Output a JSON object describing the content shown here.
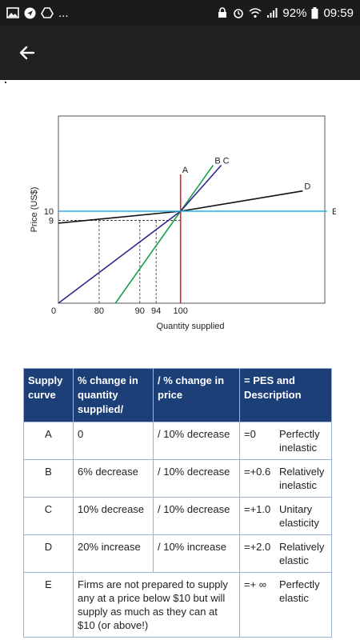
{
  "statusbar": {
    "notifications_more": "...",
    "battery": "92%",
    "time": "09:59"
  },
  "appbar": {
    "back_icon": "arrow-left-icon"
  },
  "chart_data": {
    "type": "line",
    "xlabel": "Quantity supplied",
    "ylabel": "Price (US$)",
    "x_ticks": [
      "0",
      "80",
      "90",
      "94",
      "100"
    ],
    "y_ticks": [
      "9",
      "10"
    ],
    "series": [
      {
        "name": "A",
        "color": "#e0202a",
        "points": [
          [
            100,
            0
          ],
          [
            100,
            14
          ]
        ]
      },
      {
        "name": "B",
        "color": "#1aa14c",
        "points": [
          [
            84,
            0
          ],
          [
            100,
            10
          ],
          [
            108,
            15
          ]
        ]
      },
      {
        "name": "C",
        "color": "#2d2a8c",
        "points": [
          [
            70,
            0
          ],
          [
            100,
            10
          ],
          [
            110,
            15
          ]
        ]
      },
      {
        "name": "D",
        "color": "#111111",
        "points": [
          [
            70,
            8.7
          ],
          [
            100,
            10
          ],
          [
            130,
            12.2
          ]
        ]
      },
      {
        "name": "E",
        "color": "#2aaee0",
        "points": [
          [
            70,
            10
          ],
          [
            136,
            10
          ]
        ]
      }
    ],
    "reference_lines": [
      {
        "from": [
          70,
          9
        ],
        "to": [
          100,
          9
        ]
      },
      {
        "from": [
          80,
          0
        ],
        "to": [
          80,
          9
        ]
      },
      {
        "from": [
          90,
          0
        ],
        "to": [
          90,
          9
        ]
      },
      {
        "from": [
          94,
          0
        ],
        "to": [
          94,
          9
        ]
      }
    ]
  },
  "table": {
    "headers": [
      "Supply curve",
      "% change in quantity supplied/",
      "/ % change in price",
      "= PES and Description"
    ],
    "rows": [
      {
        "curve": "A",
        "qty": "0",
        "price": "/ 10% decrease",
        "pes": "=0",
        "desc": "Perfectly inelastic"
      },
      {
        "curve": "B",
        "qty": "6% decrease",
        "price": "/ 10% decrease",
        "pes": "=+0.6",
        "desc": "Relatively inelastic"
      },
      {
        "curve": "C",
        "qty": "10% decrease",
        "price": "/ 10% decrease",
        "pes": "=+1.0",
        "desc": "Unitary elasticity"
      },
      {
        "curve": "D",
        "qty": "20% increase",
        "price": "/ 10% increase",
        "pes": "=+2.0",
        "desc": "Relatively elastic"
      },
      {
        "curve": "E",
        "qty_price": "Firms are not prepared to supply any at a price below $10 but will supply as much as they can at $10 (or above!)",
        "pes": "=+ ∞",
        "desc": "Perfectly elastic"
      }
    ]
  }
}
